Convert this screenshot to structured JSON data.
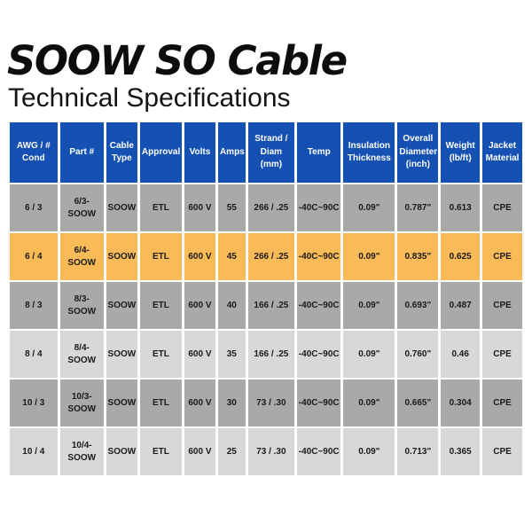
{
  "page": {
    "title": "SOOW SO Cable",
    "subtitle": "Technical Specifications"
  },
  "colors": {
    "header_bg": "#1551B3",
    "header_text": "#FFFFFF",
    "row_gray": "#A9A9A9",
    "row_light_gray": "#D8D8D8",
    "row_highlight_orange": "#F9BB58",
    "cell_text": "#1A1A1A",
    "gap": "#FFFFFF"
  },
  "table": {
    "columns": [
      "AWG / # Cond",
      "Part #",
      "Cable Type",
      "Approval",
      "Volts",
      "Amps",
      "Strand / Diam (mm)",
      "Temp",
      "Insulation Thickness",
      "Overall Diameter (inch)",
      "Weight (lb/ft)",
      "Jacket Material"
    ],
    "rows": [
      {
        "style": "gray",
        "cells": [
          "6 / 3",
          "6/3-SOOW",
          "SOOW",
          "ETL",
          "600 V",
          "55",
          "266 / .25",
          "-40C~90C",
          "0.09\"",
          "0.787\"",
          "0.613",
          "CPE"
        ]
      },
      {
        "style": "highlight",
        "cells": [
          "6 / 4",
          "6/4-SOOW",
          "SOOW",
          "ETL",
          "600 V",
          "45",
          "266 / .25",
          "-40C~90C",
          "0.09\"",
          "0.835\"",
          "0.625",
          "CPE"
        ]
      },
      {
        "style": "gray",
        "cells": [
          "8 / 3",
          "8/3-SOOW",
          "SOOW",
          "ETL",
          "600 V",
          "40",
          "166 / .25",
          "-40C~90C",
          "0.09\"",
          "0.693\"",
          "0.487",
          "CPE"
        ]
      },
      {
        "style": "light",
        "cells": [
          "8 / 4",
          "8/4-SOOW",
          "SOOW",
          "ETL",
          "600 V",
          "35",
          "166 / .25",
          "-40C~90C",
          "0.09\"",
          "0.760\"",
          "0.46",
          "CPE"
        ]
      },
      {
        "style": "gray",
        "cells": [
          "10 / 3",
          "10/3-SOOW",
          "SOOW",
          "ETL",
          "600 V",
          "30",
          "73 / .30",
          "-40C~90C",
          "0.09\"",
          "0.665\"",
          "0.304",
          "CPE"
        ]
      },
      {
        "style": "light",
        "cells": [
          "10 / 4",
          "10/4-SOOW",
          "SOOW",
          "ETL",
          "600 V",
          "25",
          "73 / .30",
          "-40C~90C",
          "0.09\"",
          "0.713\"",
          "0.365",
          "CPE"
        ]
      }
    ]
  },
  "chart_data": {
    "type": "table",
    "title": "SOOW SO Cable Technical Specifications",
    "columns": [
      "AWG / # Cond",
      "Part #",
      "Cable Type",
      "Approval",
      "Volts",
      "Amps",
      "Strand / Diam (mm)",
      "Temp",
      "Insulation Thickness",
      "Overall Diameter (inch)",
      "Weight (lb/ft)",
      "Jacket Material"
    ],
    "rows": [
      [
        "6 / 3",
        "6/3-SOOW",
        "SOOW",
        "ETL",
        "600 V",
        55,
        "266 / .25",
        "-40C~90C",
        "0.09\"",
        "0.787\"",
        0.613,
        "CPE"
      ],
      [
        "6 / 4",
        "6/4-SOOW",
        "SOOW",
        "ETL",
        "600 V",
        45,
        "266 / .25",
        "-40C~90C",
        "0.09\"",
        "0.835\"",
        0.625,
        "CPE"
      ],
      [
        "8 / 3",
        "8/3-SOOW",
        "SOOW",
        "ETL",
        "600 V",
        40,
        "166 / .25",
        "-40C~90C",
        "0.09\"",
        "0.693\"",
        0.487,
        "CPE"
      ],
      [
        "8 / 4",
        "8/4-SOOW",
        "SOOW",
        "ETL",
        "600 V",
        35,
        "166 / .25",
        "-40C~90C",
        "0.09\"",
        "0.760\"",
        0.46,
        "CPE"
      ],
      [
        "10 / 3",
        "10/3-SOOW",
        "SOOW",
        "ETL",
        "600 V",
        30,
        "73 / .30",
        "-40C~90C",
        "0.09\"",
        "0.665\"",
        0.304,
        "CPE"
      ],
      [
        "10 / 4",
        "10/4-SOOW",
        "SOOW",
        "ETL",
        "600 V",
        25,
        "73 / .30",
        "-40C~90C",
        "0.09\"",
        "0.713\"",
        0.365,
        "CPE"
      ]
    ],
    "highlighted_row_index": 1
  }
}
